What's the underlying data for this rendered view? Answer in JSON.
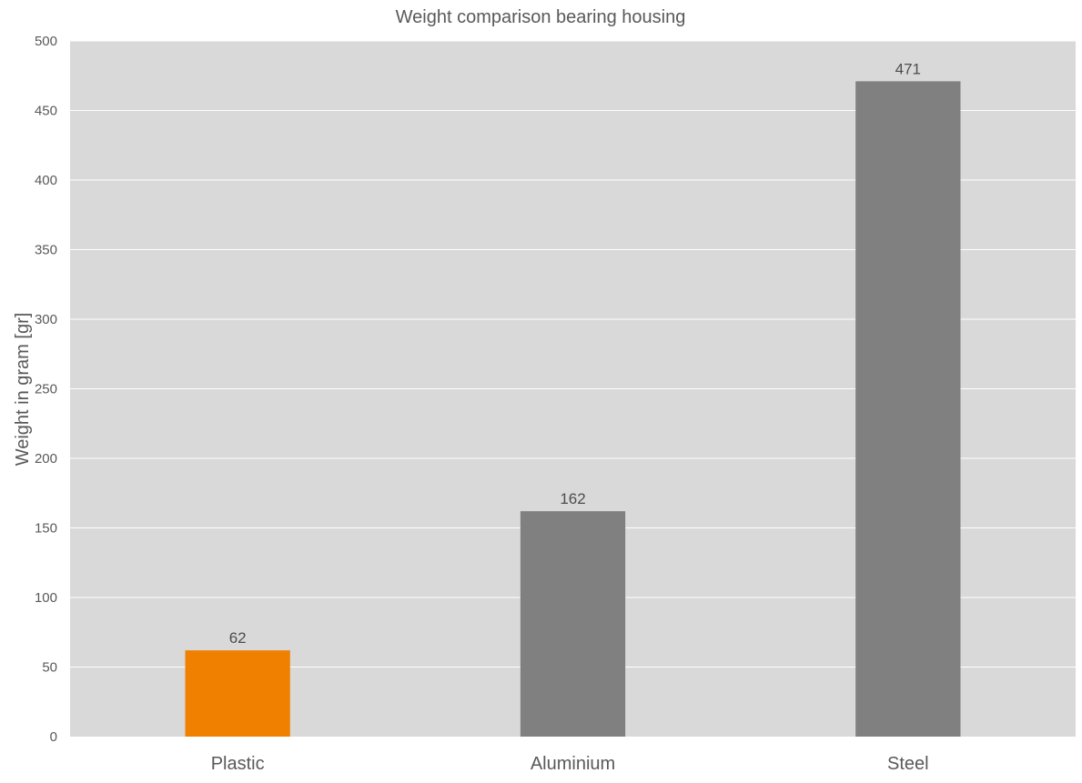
{
  "chart_data": {
    "type": "bar",
    "title": "Weight comparison bearing housing",
    "xlabel": "",
    "ylabel": "Weight in gram [gr]",
    "categories": [
      "Plastic",
      "Aluminium",
      "Steel"
    ],
    "values": [
      62,
      162,
      471
    ],
    "data_labels": [
      "62",
      "162",
      "471"
    ],
    "ylim": [
      0,
      500
    ],
    "yticks": [
      0,
      50,
      100,
      150,
      200,
      250,
      300,
      350,
      400,
      450,
      500
    ],
    "ytick_labels": [
      "0",
      "50",
      "100",
      "150",
      "200",
      "250",
      "300",
      "350",
      "400",
      "450",
      "500"
    ],
    "bar_colors": [
      "#f08000",
      "#808080",
      "#808080"
    ],
    "plot_background": "#d9d9d9",
    "gridline_color": "#ffffff",
    "grid": true,
    "legend": "none"
  }
}
